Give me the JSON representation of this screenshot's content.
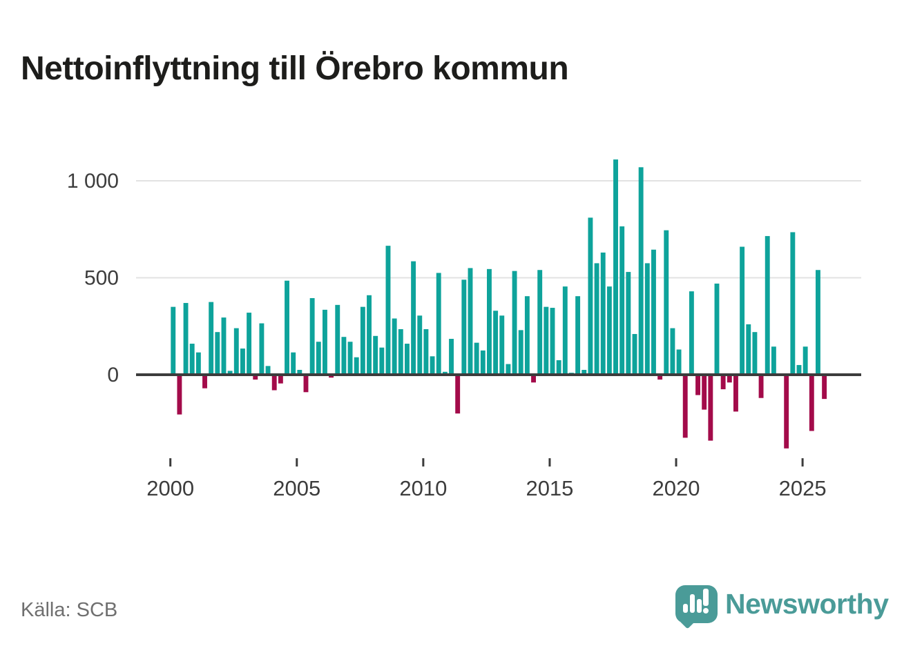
{
  "title": "Nettoinflyttning till Örebro kommun",
  "source": "Källa: SCB",
  "branding": {
    "logo_text": "Newsworthy",
    "logo_icon": "speech-bubble-with-bar-chart-and-exclamation"
  },
  "colors": {
    "positive_bar": "#0ea39b",
    "negative_bar": "#a30b4a",
    "axis_line": "#3c3c3c",
    "axis_text": "#3c3c3c",
    "gridline": "#e2e2e2",
    "title_text": "#1d1d1b",
    "source_text": "#6f6f6f",
    "brand_teal": "#4a9b98"
  },
  "chart_data": {
    "type": "bar",
    "title": "Nettoinflyttning till Örebro kommun",
    "xlabel": "",
    "ylabel": "",
    "frequency": "quarterly",
    "x_start": {
      "year": 2000,
      "quarter": 1
    },
    "x_end": {
      "year": 2025,
      "quarter": 4
    },
    "values": [
      350,
      -205,
      370,
      160,
      115,
      -70,
      375,
      220,
      295,
      20,
      240,
      135,
      320,
      -25,
      265,
      45,
      -80,
      -45,
      485,
      115,
      25,
      -90,
      395,
      170,
      335,
      -15,
      360,
      195,
      170,
      90,
      350,
      410,
      200,
      140,
      665,
      290,
      235,
      160,
      585,
      305,
      235,
      95,
      525,
      15,
      185,
      -200,
      490,
      550,
      165,
      125,
      545,
      330,
      305,
      55,
      535,
      230,
      405,
      -40,
      540,
      350,
      345,
      75,
      455,
      10,
      405,
      25,
      810,
      575,
      630,
      455,
      1110,
      765,
      530,
      210,
      1070,
      575,
      645,
      -25,
      745,
      240,
      130,
      -325,
      430,
      -105,
      -180,
      -340,
      470,
      -75,
      -40,
      -190,
      660,
      260,
      220,
      -120,
      715,
      145,
      0,
      -380,
      735,
      50,
      145,
      -290,
      540,
      -125
    ],
    "x_tick_labels": [
      "2000",
      "2005",
      "2010",
      "2015",
      "2020",
      "2025"
    ],
    "y_ticks": [
      {
        "value": 0,
        "label": "0"
      },
      {
        "value": 500,
        "label": "500"
      },
      {
        "value": 1000,
        "label": "1 000"
      }
    ],
    "ylim": [
      -430,
      1180
    ],
    "grid": "horizontal-only",
    "legend": "none"
  }
}
